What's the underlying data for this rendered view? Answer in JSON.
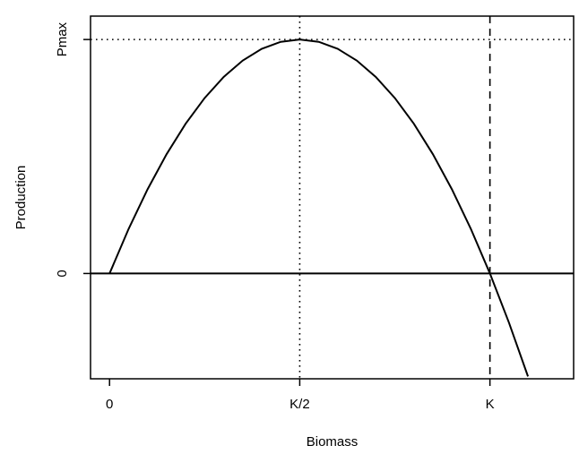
{
  "chart_data": {
    "type": "line",
    "title": "",
    "xlabel": "Biomass",
    "ylabel": "Production",
    "xlim": [
      -0.05,
      1.22
    ],
    "ylim": [
      -0.45,
      1.1
    ],
    "grid": false,
    "legend": "none",
    "x_ticks": [
      {
        "value": 0,
        "label": "0"
      },
      {
        "value": 0.5,
        "label": "K/2"
      },
      {
        "value": 1,
        "label": "K"
      }
    ],
    "y_ticks": [
      {
        "value": 0,
        "label": "0"
      },
      {
        "value": 1,
        "label": "Pmax"
      }
    ],
    "series": [
      {
        "x": [
          0,
          0.05,
          0.1,
          0.15,
          0.2,
          0.25,
          0.3,
          0.35,
          0.4,
          0.45,
          0.5,
          0.55,
          0.6,
          0.65,
          0.7,
          0.75,
          0.8,
          0.85,
          0.9,
          0.95,
          1.0,
          1.05,
          1.1
        ],
        "y": [
          0,
          0.19,
          0.36,
          0.51,
          0.64,
          0.75,
          0.84,
          0.91,
          0.96,
          0.99,
          1.0,
          0.99,
          0.96,
          0.91,
          0.84,
          0.75,
          0.64,
          0.51,
          0.36,
          0.19,
          0,
          -0.21,
          -0.44
        ]
      }
    ],
    "reference_lines": [
      {
        "orientation": "horizontal",
        "value": 1,
        "style": "dotted"
      },
      {
        "orientation": "horizontal",
        "value": 0,
        "style": "solid"
      },
      {
        "orientation": "vertical",
        "value": 0.5,
        "style": "dotted"
      },
      {
        "orientation": "vertical",
        "value": 1,
        "style": "dashed"
      }
    ]
  }
}
